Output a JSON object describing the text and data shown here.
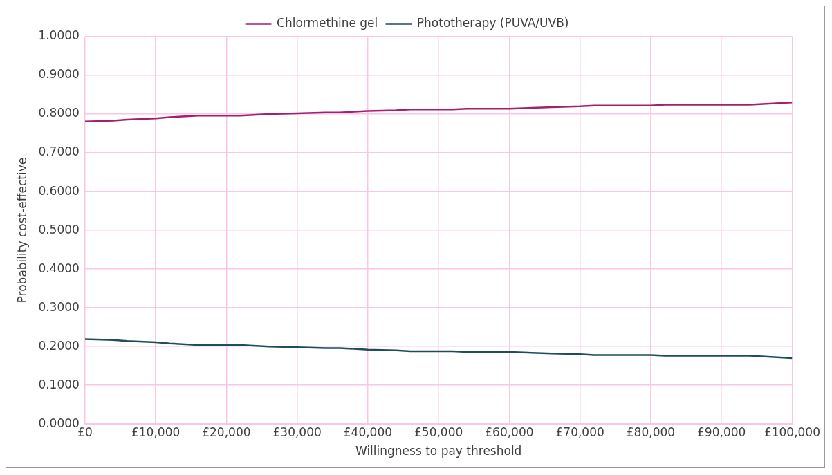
{
  "chart_data": {
    "type": "line",
    "xlabel": "Willingness to pay threshold",
    "ylabel": "Probability cost-effective",
    "x": [
      0,
      4000,
      6000,
      10000,
      12000,
      16000,
      20000,
      22000,
      26000,
      30000,
      34000,
      36000,
      40000,
      44000,
      46000,
      52000,
      54000,
      60000,
      66000,
      70000,
      72000,
      80000,
      82000,
      94000,
      100000
    ],
    "series": [
      {
        "name": "Chlormethine gel",
        "color": "#a3206e",
        "values": [
          0.781,
          0.783,
          0.786,
          0.789,
          0.792,
          0.796,
          0.796,
          0.796,
          0.8,
          0.802,
          0.804,
          0.804,
          0.808,
          0.81,
          0.812,
          0.812,
          0.814,
          0.814,
          0.818,
          0.82,
          0.822,
          0.822,
          0.824,
          0.824,
          0.83
        ]
      },
      {
        "name": "Phototherapy (PUVA/UVB)",
        "color": "#1c4e5e",
        "values": [
          0.219,
          0.217,
          0.214,
          0.211,
          0.208,
          0.204,
          0.204,
          0.204,
          0.2,
          0.198,
          0.196,
          0.196,
          0.192,
          0.19,
          0.188,
          0.188,
          0.186,
          0.186,
          0.182,
          0.18,
          0.178,
          0.178,
          0.176,
          0.176,
          0.17
        ]
      }
    ],
    "xlim": [
      0,
      100000
    ],
    "xticks": [
      {
        "value": 0,
        "label": "£0"
      },
      {
        "value": 10000,
        "label": "£10,000"
      },
      {
        "value": 20000,
        "label": "£20,000"
      },
      {
        "value": 30000,
        "label": "£30,000"
      },
      {
        "value": 40000,
        "label": "£40,000"
      },
      {
        "value": 50000,
        "label": "£50,000"
      },
      {
        "value": 60000,
        "label": "£60,000"
      },
      {
        "value": 70000,
        "label": "£70,000"
      },
      {
        "value": 80000,
        "label": "£80,000"
      },
      {
        "value": 90000,
        "label": "£90,000"
      },
      {
        "value": 100000,
        "label": "£100,000"
      }
    ],
    "ylim": [
      0,
      1
    ],
    "yticks": [
      {
        "value": 0,
        "label": "0.0000"
      },
      {
        "value": 0.1,
        "label": "0.1000"
      },
      {
        "value": 0.2,
        "label": "0.2000"
      },
      {
        "value": 0.3,
        "label": "0.3000"
      },
      {
        "value": 0.4,
        "label": "0.4000"
      },
      {
        "value": 0.5,
        "label": "0.5000"
      },
      {
        "value": 0.6,
        "label": "0.6000"
      },
      {
        "value": 0.7,
        "label": "0.7000"
      },
      {
        "value": 0.8,
        "label": "0.8000"
      },
      {
        "value": 0.9,
        "label": "0.9000"
      },
      {
        "value": 1,
        "label": "1.0000"
      }
    ],
    "grid": true,
    "legend": "top",
    "marker": "none",
    "line_style": "solid"
  }
}
